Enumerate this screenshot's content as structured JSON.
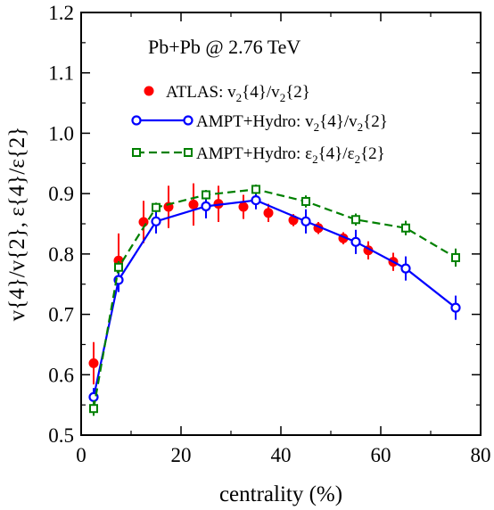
{
  "chart_data": {
    "type": "scatter",
    "title": "Pb+Pb @ 2.76 TeV",
    "xlabel": "centrality (%)",
    "ylabel": "v{4}/v{2},  ε{4}/ε{2}",
    "xlim": [
      0,
      80
    ],
    "ylim": [
      0.5,
      1.2
    ],
    "x_ticks": [
      "0",
      "20",
      "40",
      "60",
      "80"
    ],
    "y_ticks": [
      "0.5",
      "0.6",
      "0.7",
      "0.8",
      "0.9",
      "1.0",
      "1.1",
      "1.2"
    ],
    "legend_position": "upper-right",
    "series": [
      {
        "name": "ATLAS: v2{4}/v2{2}",
        "legend_parts": [
          "ATLAS: v",
          "2",
          "{4}/v",
          "2",
          "{2}"
        ],
        "color": "#ff0000",
        "marker": "filled-circle",
        "line": "none",
        "points": [
          {
            "x": 2.5,
            "y": 0.619,
            "err": 0.035
          },
          {
            "x": 7.5,
            "y": 0.789,
            "err": 0.045
          },
          {
            "x": 12.5,
            "y": 0.853,
            "err": 0.035
          },
          {
            "x": 17.5,
            "y": 0.878,
            "err": 0.035
          },
          {
            "x": 22.5,
            "y": 0.882,
            "err": 0.035
          },
          {
            "x": 27.5,
            "y": 0.883,
            "err": 0.03
          },
          {
            "x": 32.5,
            "y": 0.878,
            "err": 0.02
          },
          {
            "x": 37.5,
            "y": 0.868,
            "err": 0.015
          },
          {
            "x": 42.5,
            "y": 0.856,
            "err": 0.01
          },
          {
            "x": 47.5,
            "y": 0.843,
            "err": 0.01
          },
          {
            "x": 52.5,
            "y": 0.826,
            "err": 0.01
          },
          {
            "x": 57.5,
            "y": 0.806,
            "err": 0.015
          },
          {
            "x": 62.5,
            "y": 0.787,
            "err": 0.015
          }
        ]
      },
      {
        "name": "AMPT+Hydro: v2{4}/v2{2}",
        "legend_parts": [
          "AMPT+Hydro: v",
          "2",
          "{4}/v",
          "2",
          "{2}"
        ],
        "color": "#0000ff",
        "marker": "open-circle",
        "line": "solid",
        "points": [
          {
            "x": 2.5,
            "y": 0.563,
            "err": 0.015
          },
          {
            "x": 7.5,
            "y": 0.757,
            "err": 0.02
          },
          {
            "x": 15,
            "y": 0.854,
            "err": 0.02
          },
          {
            "x": 25,
            "y": 0.879,
            "err": 0.02
          },
          {
            "x": 35,
            "y": 0.889,
            "err": 0.015
          },
          {
            "x": 45,
            "y": 0.854,
            "err": 0.02
          },
          {
            "x": 55,
            "y": 0.82,
            "err": 0.02
          },
          {
            "x": 65,
            "y": 0.776,
            "err": 0.02
          },
          {
            "x": 75,
            "y": 0.711,
            "err": 0.02
          }
        ]
      },
      {
        "name": "AMPT+Hydro: ε2{4}/ε2{2}",
        "legend_parts": [
          "AMPT+Hydro: ε",
          "2",
          "{4}/ε",
          "2",
          "{2}"
        ],
        "color": "#008000",
        "marker": "open-square",
        "line": "dashed",
        "points": [
          {
            "x": 2.5,
            "y": 0.544,
            "err": 0.012
          },
          {
            "x": 7.5,
            "y": 0.778,
            "err": 0.01
          },
          {
            "x": 15,
            "y": 0.877,
            "err": 0.008
          },
          {
            "x": 25,
            "y": 0.898,
            "err": 0.008
          },
          {
            "x": 35,
            "y": 0.907,
            "err": 0.008
          },
          {
            "x": 45,
            "y": 0.887,
            "err": 0.01
          },
          {
            "x": 55,
            "y": 0.857,
            "err": 0.01
          },
          {
            "x": 65,
            "y": 0.843,
            "err": 0.012
          },
          {
            "x": 75,
            "y": 0.794,
            "err": 0.015
          }
        ]
      }
    ]
  }
}
